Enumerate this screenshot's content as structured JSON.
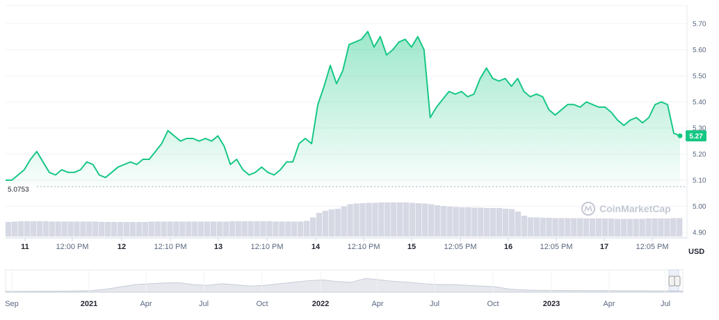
{
  "chart_data": {
    "type": "area",
    "y_axis": {
      "ticks": [
        "5.70",
        "5.60",
        "5.50",
        "5.40",
        "5.30",
        "5.20",
        "5.10",
        "5.00",
        "4.90"
      ],
      "range": [
        4.885,
        5.745
      ],
      "unit_label": "USD"
    },
    "x_axis": {
      "ticks": [
        {
          "label": "11",
          "bold": true
        },
        {
          "label": "12:00 PM",
          "bold": false
        },
        {
          "label": "12",
          "bold": true
        },
        {
          "label": "12:10 PM",
          "bold": false
        },
        {
          "label": "13",
          "bold": true
        },
        {
          "label": "12:10 PM",
          "bold": false
        },
        {
          "label": "14",
          "bold": true
        },
        {
          "label": "12:10 PM",
          "bold": false
        },
        {
          "label": "15",
          "bold": true
        },
        {
          "label": "12:05 PM",
          "bold": false
        },
        {
          "label": "16",
          "bold": true
        },
        {
          "label": "12:05 PM",
          "bold": false
        },
        {
          "label": "17",
          "bold": true
        },
        {
          "label": "12:05 PM",
          "bold": false
        }
      ]
    },
    "series": [
      {
        "values": [
          5.1,
          5.1,
          5.12,
          5.14,
          5.18,
          5.21,
          5.17,
          5.13,
          5.12,
          5.14,
          5.13,
          5.13,
          5.14,
          5.17,
          5.16,
          5.12,
          5.11,
          5.13,
          5.15,
          5.16,
          5.17,
          5.16,
          5.18,
          5.18,
          5.21,
          5.24,
          5.29,
          5.27,
          5.25,
          5.26,
          5.26,
          5.25,
          5.26,
          5.25,
          5.27,
          5.23,
          5.16,
          5.18,
          5.14,
          5.12,
          5.13,
          5.15,
          5.13,
          5.12,
          5.14,
          5.17,
          5.17,
          5.24,
          5.26,
          5.24,
          5.39,
          5.46,
          5.54,
          5.47,
          5.52,
          5.62,
          5.63,
          5.64,
          5.67,
          5.61,
          5.65,
          5.58,
          5.6,
          5.63,
          5.64,
          5.61,
          5.65,
          5.6,
          5.34,
          5.38,
          5.41,
          5.44,
          5.43,
          5.44,
          5.42,
          5.43,
          5.49,
          5.53,
          5.49,
          5.48,
          5.49,
          5.46,
          5.49,
          5.44,
          5.42,
          5.43,
          5.42,
          5.37,
          5.35,
          5.37,
          5.39,
          5.39,
          5.38,
          5.4,
          5.39,
          5.38,
          5.38,
          5.36,
          5.33,
          5.31,
          5.33,
          5.34,
          5.32,
          5.34,
          5.39,
          5.4,
          5.39,
          5.28,
          5.27
        ],
        "current": "5.27"
      }
    ],
    "reference_line": {
      "value": 5.0753,
      "label": "5.0753"
    },
    "volume": [
      0.42,
      0.43,
      0.44,
      0.44,
      0.44,
      0.44,
      0.44,
      0.43,
      0.43,
      0.43,
      0.43,
      0.43,
      0.43,
      0.43,
      0.43,
      0.42,
      0.42,
      0.42,
      0.42,
      0.42,
      0.42,
      0.42,
      0.42,
      0.43,
      0.43,
      0.43,
      0.43,
      0.43,
      0.43,
      0.43,
      0.43,
      0.43,
      0.43,
      0.43,
      0.43,
      0.43,
      0.44,
      0.44,
      0.44,
      0.44,
      0.44,
      0.44,
      0.44,
      0.43,
      0.43,
      0.43,
      0.43,
      0.43,
      0.45,
      0.55,
      0.68,
      0.74,
      0.78,
      0.8,
      0.87,
      0.93,
      0.95,
      0.96,
      0.97,
      0.97,
      0.98,
      0.98,
      0.98,
      0.98,
      0.98,
      0.97,
      0.96,
      0.95,
      0.93,
      0.9,
      0.88,
      0.86,
      0.85,
      0.84,
      0.84,
      0.83,
      0.83,
      0.82,
      0.82,
      0.82,
      0.8,
      0.79,
      0.72,
      0.6,
      0.55,
      0.55,
      0.54,
      0.54,
      0.53,
      0.53,
      0.53,
      0.53,
      0.53,
      0.52,
      0.52,
      0.52,
      0.52,
      0.52,
      0.51,
      0.51,
      0.51,
      0.51,
      0.51,
      0.52,
      0.52,
      0.52,
      0.52,
      0.53,
      0.53
    ],
    "navigator": {
      "ticks": [
        {
          "label": "Sep",
          "bold": false
        },
        {
          "label": "2021",
          "bold": true
        },
        {
          "label": "Apr",
          "bold": false
        },
        {
          "label": "Jul",
          "bold": false
        },
        {
          "label": "Oct",
          "bold": false
        },
        {
          "label": "2022",
          "bold": true
        },
        {
          "label": "Apr",
          "bold": false
        },
        {
          "label": "Jul",
          "bold": false
        },
        {
          "label": "Oct",
          "bold": false
        },
        {
          "label": "2023",
          "bold": true
        },
        {
          "label": "Apr",
          "bold": false
        },
        {
          "label": "Jul",
          "bold": false
        }
      ],
      "values": [
        0.05,
        0.05,
        0.06,
        0.06,
        0.07,
        0.08,
        0.1,
        0.2,
        0.35,
        0.5,
        0.55,
        0.6,
        0.62,
        0.5,
        0.45,
        0.55,
        0.48,
        0.4,
        0.45,
        0.55,
        0.65,
        0.75,
        0.8,
        0.7,
        0.65,
        0.9,
        0.8,
        0.7,
        0.65,
        0.55,
        0.5,
        0.5,
        0.45,
        0.4,
        0.35,
        0.2,
        0.15,
        0.12,
        0.12,
        0.11,
        0.1,
        0.1,
        0.1,
        0.09,
        0.09,
        0.08,
        0.08,
        0.08
      ]
    },
    "line_color": "#16c784",
    "fill_color": "#16c784",
    "volume_color": "#d6d9e4",
    "grid": true,
    "watermark": "CoinMarketCap"
  }
}
